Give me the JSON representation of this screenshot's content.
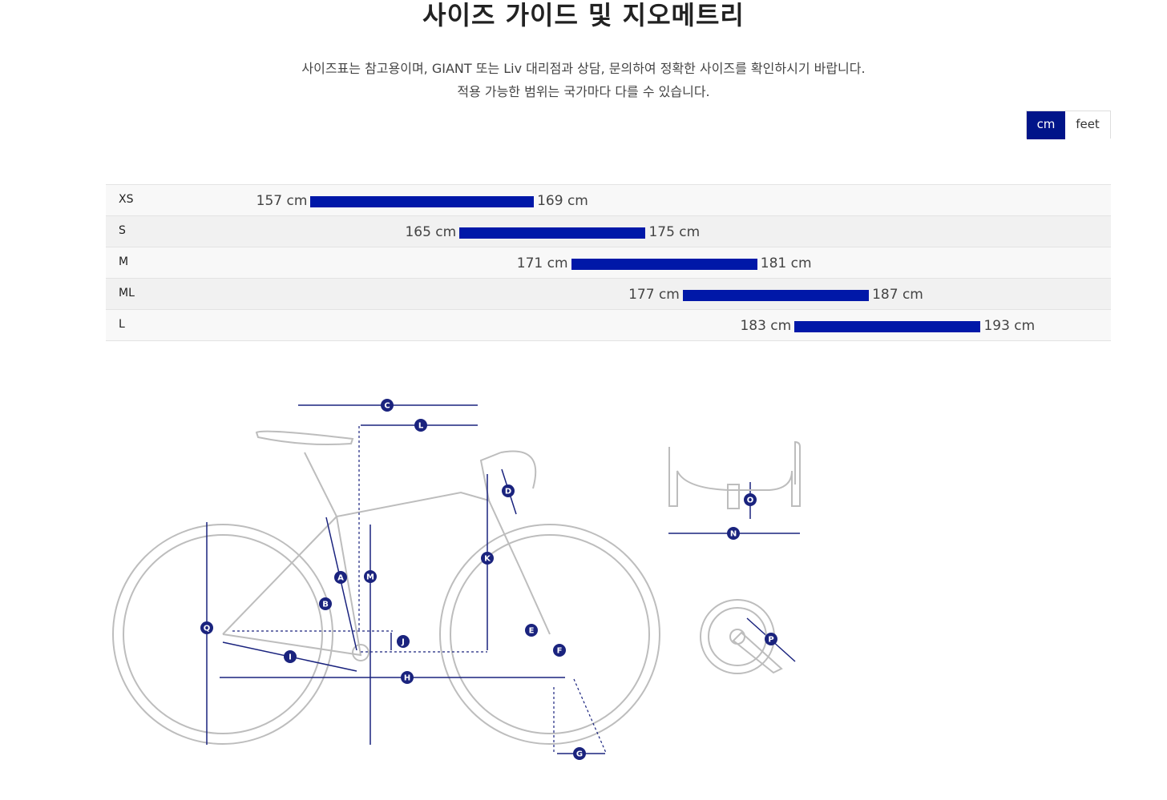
{
  "title": "사이즈 가이드 및 지오메트리",
  "description_line1": "사이즈표는 참고용이며, GIANT 또는 Liv 대리점과 상담, 문의하여 정확한 사이즈를 확인하시기 바랍니다.",
  "description_line2": "적용 가능한 범위는 국가마다 다를 수 있습니다.",
  "unit_toggle": {
    "cm_label": "cm",
    "feet_label": "feet",
    "selected": "cm"
  },
  "accent_color": "#001489",
  "bar_color": "#0018a8",
  "chart_data": {
    "type": "bar",
    "orientation": "horizontal-range",
    "unit": "cm",
    "scale_min_cm": 146,
    "scale_max_cm": 200,
    "rows": [
      {
        "size": "XS",
        "min": 157,
        "max": 169,
        "min_label": "157 cm",
        "max_label": "169 cm"
      },
      {
        "size": "S",
        "min": 165,
        "max": 175,
        "min_label": "165 cm",
        "max_label": "175 cm"
      },
      {
        "size": "M",
        "min": 171,
        "max": 181,
        "min_label": "171 cm",
        "max_label": "181 cm"
      },
      {
        "size": "ML",
        "min": 177,
        "max": 187,
        "min_label": "177 cm",
        "max_label": "187 cm"
      },
      {
        "size": "L",
        "min": 183,
        "max": 193,
        "min_label": "183 cm",
        "max_label": "193 cm"
      }
    ]
  },
  "geometry_labels": [
    "A",
    "B",
    "C",
    "D",
    "E",
    "F",
    "G",
    "H",
    "I",
    "J",
    "K",
    "L",
    "M",
    "N",
    "O",
    "P",
    "Q"
  ],
  "icons": [
    "bicycle-geometry-diagram",
    "handlebar-diagram",
    "crankset-diagram"
  ]
}
